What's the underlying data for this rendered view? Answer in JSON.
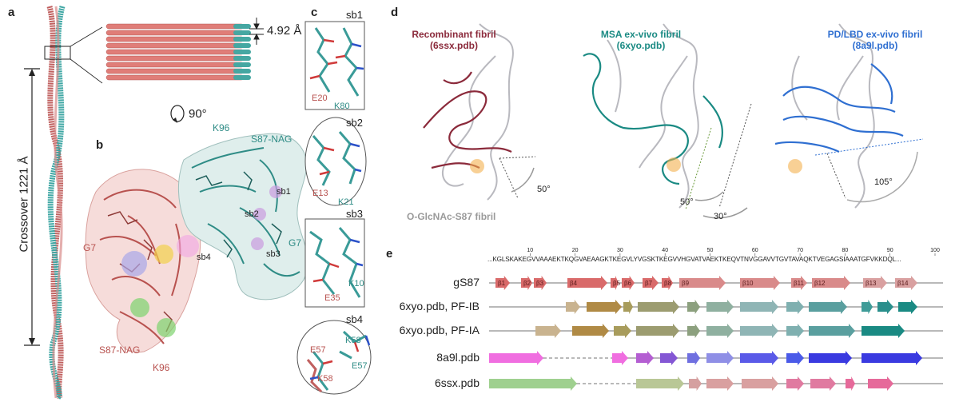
{
  "panels": {
    "a": "a",
    "b": "b",
    "c": "c",
    "d": "d",
    "e": "e"
  },
  "panel_a": {
    "spacing": "4.92 Å",
    "crossover": "Crossover 1221 Å",
    "rotation": "90°"
  },
  "panel_b": {
    "labels": {
      "k96_top": "K96",
      "s87nag_top": "S87-NAG",
      "sb1": "sb1",
      "sb2": "sb2",
      "sb3": "sb3",
      "sb4": "sb4",
      "g7_right": "G7",
      "g7_left": "G7",
      "s87nag_bottom": "S87-NAG",
      "k96_bottom": "K96"
    }
  },
  "panel_c": {
    "sb1": {
      "title": "sb1",
      "res_a": "E20",
      "res_b": "K80"
    },
    "sb2": {
      "title": "sb2",
      "res_a": "E13",
      "res_b": "K21"
    },
    "sb3": {
      "title": "sb3",
      "res_a": "K10",
      "res_b": "E35"
    },
    "sb4": {
      "title": "sb4",
      "res_a": "K58",
      "res_b": "E57",
      "res_c": "E57",
      "res_d": "K58"
    }
  },
  "panel_d": {
    "titles": [
      {
        "line1": "Recombinant fibril",
        "line2": "(6ssx.pdb)",
        "color": "#8b2a3b"
      },
      {
        "line1": "MSA ex-vivo fibril",
        "line2": "(6xyo.pdb)",
        "color": "#1a8a83"
      },
      {
        "line1": "PD/LBD ex-vivo fibril",
        "line2": "(8a9l.pdb)",
        "color": "#2f6fd1"
      }
    ],
    "reference": "O-GlcNAc-S87 fibril",
    "angles": [
      "50°",
      "50°",
      "30°",
      "105°"
    ]
  },
  "panel_e": {
    "ticks": [
      "10",
      "20",
      "30",
      "40",
      "50",
      "60",
      "70",
      "80",
      "90",
      "100"
    ],
    "sequence": "...KGLSKAKEGVVAAAEKTKQGVAEAAGKTKEGVLYVGSKTKEGVVHGVATVAEKTKEQVTNVGGAVVTGVTAVAQKTVEGAGSIAAATGFVKKDQL...",
    "rows": [
      {
        "label": "gS87",
        "strand_labels": [
          "β1",
          "β2",
          "β3",
          "β4",
          "β5",
          "β6",
          "β7",
          "β8",
          "β9",
          "β10",
          "β11",
          "β12",
          "β13",
          "β14"
        ]
      },
      {
        "label": "6xyo.pdb, PF-IB"
      },
      {
        "label": "6xyo.pdb, PF-IA"
      },
      {
        "label": "8a9l.pdb"
      },
      {
        "label": "6ssx.pdb"
      }
    ]
  },
  "colors": {
    "red_chain": "#c0605f",
    "teal_chain": "#3a9b98",
    "blue_chain": "#2f6fd1",
    "maroon_chain": "#8b2a3b",
    "grey_chain": "#b9b9bf"
  }
}
